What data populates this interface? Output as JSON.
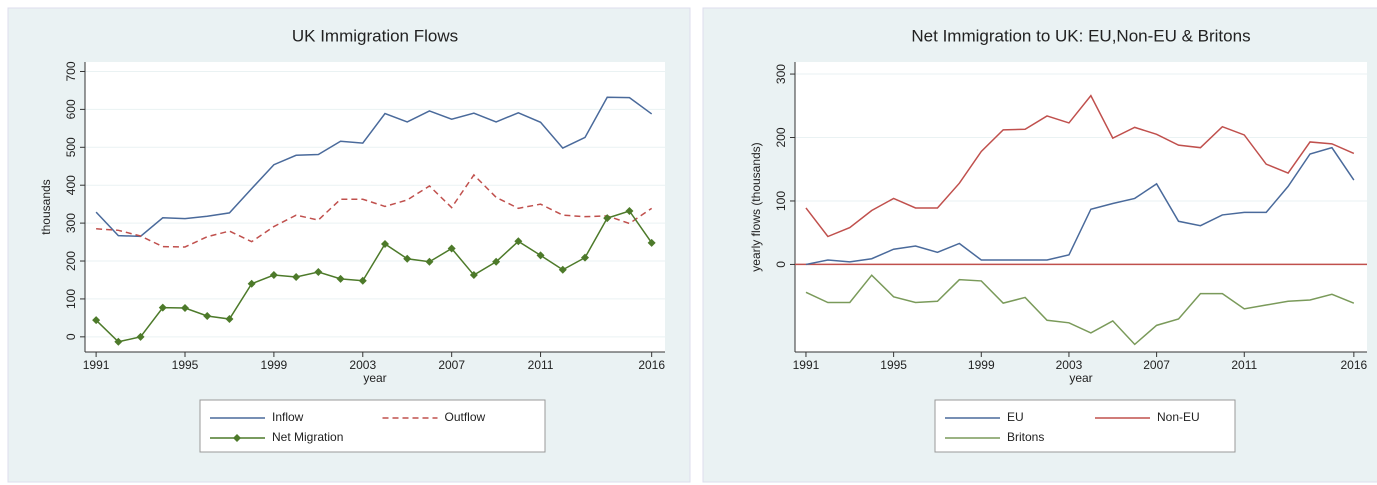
{
  "chart_data": [
    {
      "type": "line",
      "title": "UK Immigration Flows",
      "x_label": "year",
      "y_label": "thousands",
      "x": [
        1991,
        1992,
        1993,
        1994,
        1995,
        1996,
        1997,
        1998,
        1999,
        2000,
        2001,
        2002,
        2003,
        2004,
        2005,
        2006,
        2007,
        2008,
        2009,
        2010,
        2011,
        2012,
        2013,
        2014,
        2015,
        2016
      ],
      "xlim": [
        1990.5,
        2016.6
      ],
      "xticks": [
        1991,
        1995,
        1999,
        2003,
        2007,
        2011,
        2016
      ],
      "ylim": [
        -40,
        725
      ],
      "yticks": [
        0,
        100,
        200,
        300,
        400,
        500,
        600,
        700
      ],
      "grid": true,
      "series": [
        {
          "name": "Inflow",
          "color": "#4a6a9b",
          "values": [
            329,
            267,
            265,
            314,
            312,
            318,
            327,
            391,
            454,
            479,
            481,
            516,
            511,
            589,
            567,
            596,
            574,
            590,
            567,
            591,
            566,
            498,
            526,
            632,
            631,
            588
          ]
        },
        {
          "name": "Outflow",
          "color": "#c0504d",
          "dash": true,
          "values": [
            285,
            281,
            266,
            238,
            237,
            264,
            279,
            251,
            291,
            321,
            308,
            363,
            363,
            344,
            361,
            398,
            341,
            427,
            368,
            339,
            350,
            321,
            317,
            319,
            299,
            339
          ]
        },
        {
          "name": "Net Migration",
          "color": "#4d7a2a",
          "marker": "diamond",
          "values": [
            44,
            -13,
            0,
            77,
            76,
            55,
            47,
            140,
            163,
            158,
            171,
            153,
            148,
            245,
            206,
            198,
            233,
            163,
            198,
            252,
            215,
            177,
            209,
            313,
            332,
            248
          ]
        }
      ]
    },
    {
      "type": "line",
      "title": "Net Immigration to UK: EU,Non-EU & Britons",
      "x_label": "year",
      "y_label": "yearly flows (thousands)",
      "x": [
        1991,
        1992,
        1993,
        1994,
        1995,
        1996,
        1997,
        1998,
        1999,
        2000,
        2001,
        2002,
        2003,
        2004,
        2005,
        2006,
        2007,
        2008,
        2009,
        2010,
        2011,
        2012,
        2013,
        2014,
        2015,
        2016
      ],
      "xlim": [
        1990.5,
        2016.6
      ],
      "xticks": [
        1991,
        1995,
        1999,
        2003,
        2007,
        2011,
        2016
      ],
      "ylim": [
        -138,
        319
      ],
      "yticks": [
        0,
        100,
        200,
        300
      ],
      "grid": true,
      "yline": 0,
      "yline_color": "#c0504d",
      "series": [
        {
          "name": "EU",
          "color": "#4a6a9b",
          "values": [
            0,
            7,
            4,
            9,
            24,
            29,
            19,
            33,
            7,
            7,
            7,
            7,
            15,
            87,
            96,
            104,
            127,
            68,
            61,
            78,
            82,
            82,
            123,
            174,
            184,
            133
          ]
        },
        {
          "name": "Non-EU",
          "color": "#c0504d",
          "values": [
            89,
            44,
            58,
            85,
            104,
            89,
            89,
            128,
            178,
            212,
            213,
            234,
            223,
            266,
            199,
            216,
            205,
            188,
            184,
            217,
            204,
            158,
            144,
            193,
            190,
            175
          ]
        },
        {
          "name": "Britons",
          "color": "#7a9a5a",
          "values": [
            -44,
            -60,
            -60,
            -17,
            -51,
            -60,
            -58,
            -24,
            -26,
            -61,
            -52,
            -88,
            -92,
            -108,
            -89,
            -126,
            -96,
            -86,
            -46,
            -46,
            -70,
            -64,
            -58,
            -56,
            -47,
            -61
          ]
        }
      ]
    }
  ]
}
